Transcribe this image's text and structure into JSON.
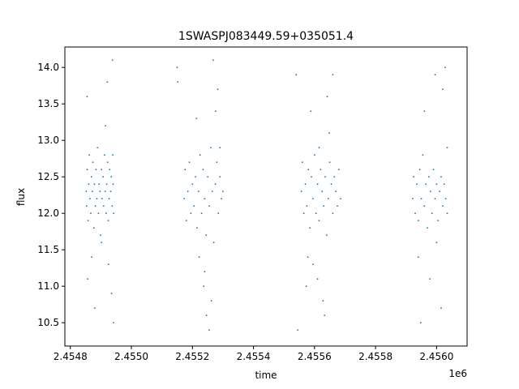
{
  "chart_data": {
    "type": "scatter",
    "title": "1SWASPJ083449.59+035051.4",
    "xlabel": "time",
    "ylabel": "flux",
    "x_offset_label": "1e6",
    "xlim": [
      2454782,
      2456100
    ],
    "ylim": [
      10.18,
      14.28
    ],
    "x_ticks": [
      {
        "value": 2454800,
        "label": "2.4548"
      },
      {
        "value": 2455000,
        "label": "2.4550"
      },
      {
        "value": 2455200,
        "label": "2.4552"
      },
      {
        "value": 2455400,
        "label": "2.4554"
      },
      {
        "value": 2455600,
        "label": "2.4556"
      },
      {
        "value": 2455800,
        "label": "2.4558"
      },
      {
        "value": 2456000,
        "label": "2.4560"
      }
    ],
    "y_ticks": [
      {
        "value": 10.5,
        "label": "10.5"
      },
      {
        "value": 11.0,
        "label": "11.0"
      },
      {
        "value": 11.5,
        "label": "11.5"
      },
      {
        "value": 12.0,
        "label": "12.0"
      },
      {
        "value": 12.5,
        "label": "12.5"
      },
      {
        "value": 13.0,
        "label": "13.0"
      },
      {
        "value": 13.5,
        "label": "13.5"
      },
      {
        "value": 14.0,
        "label": "14.0"
      }
    ],
    "grid": false,
    "marker_color": "#1f77b4",
    "series": [
      {
        "x": [
          2454852,
          2454853,
          2454855,
          2454858,
          2454860,
          2454862,
          2454864,
          2454867,
          2454869,
          2454872,
          2454874,
          2454877,
          2454879,
          2454882,
          2454884,
          2454887,
          2454889,
          2454892,
          2454894,
          2454897,
          2454899,
          2454902,
          2454904,
          2454907,
          2454909,
          2454912,
          2454914,
          2454917,
          2454919,
          2454922,
          2454924,
          2454927,
          2454929,
          2454932,
          2454934,
          2454937,
          2454939,
          2454940,
          2454942,
          2454915,
          2454925,
          2454935,
          2454855,
          2454870,
          2454938,
          2454921,
          2454880,
          2454902,
          2454941,
          2454857,
          2455173,
          2455176,
          2455180,
          2455185,
          2455190,
          2455195,
          2455200,
          2455205,
          2455210,
          2455215,
          2455220,
          2455225,
          2455230,
          2455235,
          2455240,
          2455245,
          2455250,
          2455255,
          2455260,
          2455265,
          2455270,
          2455275,
          2455280,
          2455285,
          2455290,
          2455295,
          2455300,
          2455213,
          2455240,
          2455262,
          2455283,
          2455237,
          2455268,
          2455255,
          2455290,
          2455150,
          2455152,
          2455222,
          2455246,
          2455276,
          2455557,
          2455560,
          2455565,
          2455570,
          2455575,
          2455580,
          2455585,
          2455590,
          2455595,
          2455600,
          2455605,
          2455610,
          2455615,
          2455620,
          2455625,
          2455630,
          2455635,
          2455640,
          2455645,
          2455650,
          2455655,
          2455660,
          2455665,
          2455670,
          2455675,
          2455680,
          2455685,
          2455588,
          2455610,
          2455628,
          2455642,
          2455595,
          2455633,
          2455660,
          2455540,
          2455545,
          2455573,
          2455615,
          2455648,
          2455578,
          2455922,
          2455925,
          2455930,
          2455935,
          2455940,
          2455945,
          2455950,
          2455955,
          2455960,
          2455965,
          2455970,
          2455975,
          2455980,
          2455985,
          2455990,
          2455995,
          2456000,
          2456005,
          2456010,
          2456015,
          2456020,
          2456025,
          2456030,
          2456035,
          2455960,
          2455978,
          2455995,
          2456015,
          2456028,
          2455940,
          2456035,
          2455948,
          2456020,
          2456000
        ],
        "y": [
          12.3,
          12.1,
          12.6,
          11.9,
          12.4,
          12.8,
          12.2,
          12.0,
          12.5,
          12.3,
          12.7,
          11.8,
          12.4,
          12.1,
          12.6,
          12.2,
          12.9,
          12.0,
          12.4,
          12.3,
          11.7,
          12.6,
          12.2,
          12.5,
          12.1,
          12.8,
          12.3,
          12.0,
          12.4,
          12.7,
          11.9,
          12.2,
          12.6,
          12.3,
          12.5,
          12.1,
          12.8,
          12.4,
          12.0,
          13.2,
          11.3,
          10.9,
          13.6,
          11.4,
          14.1,
          13.8,
          10.7,
          11.6,
          10.5,
          11.1,
          12.2,
          12.6,
          11.9,
          12.3,
          12.7,
          12.0,
          12.4,
          12.1,
          12.5,
          11.8,
          12.3,
          12.8,
          12.0,
          12.6,
          12.2,
          11.7,
          12.5,
          12.1,
          12.9,
          12.3,
          11.6,
          12.4,
          12.7,
          12.0,
          12.5,
          12.2,
          12.3,
          13.3,
          11.2,
          10.8,
          13.7,
          11.0,
          14.1,
          10.4,
          12.9,
          14.0,
          13.8,
          11.4,
          10.6,
          13.4,
          12.3,
          12.7,
          12.0,
          12.4,
          12.1,
          12.6,
          11.8,
          12.5,
          12.2,
          12.8,
          12.0,
          12.4,
          11.9,
          12.6,
          12.3,
          12.1,
          12.5,
          11.7,
          12.2,
          12.7,
          12.4,
          12.0,
          12.5,
          12.3,
          12.1,
          12.6,
          12.2,
          13.4,
          11.1,
          10.8,
          13.6,
          11.3,
          10.6,
          13.9,
          13.9,
          10.4,
          11.0,
          12.9,
          13.1,
          11.4,
          12.2,
          12.5,
          12.0,
          12.4,
          11.9,
          12.6,
          12.2,
          12.8,
          12.1,
          12.4,
          11.8,
          12.5,
          12.3,
          12.0,
          12.6,
          12.2,
          12.4,
          11.9,
          12.3,
          12.5,
          12.1,
          12.4,
          12.2,
          12.0,
          13.4,
          11.1,
          13.9,
          10.7,
          14.0,
          11.4,
          12.9,
          10.5,
          13.7,
          11.6
        ]
      }
    ]
  }
}
